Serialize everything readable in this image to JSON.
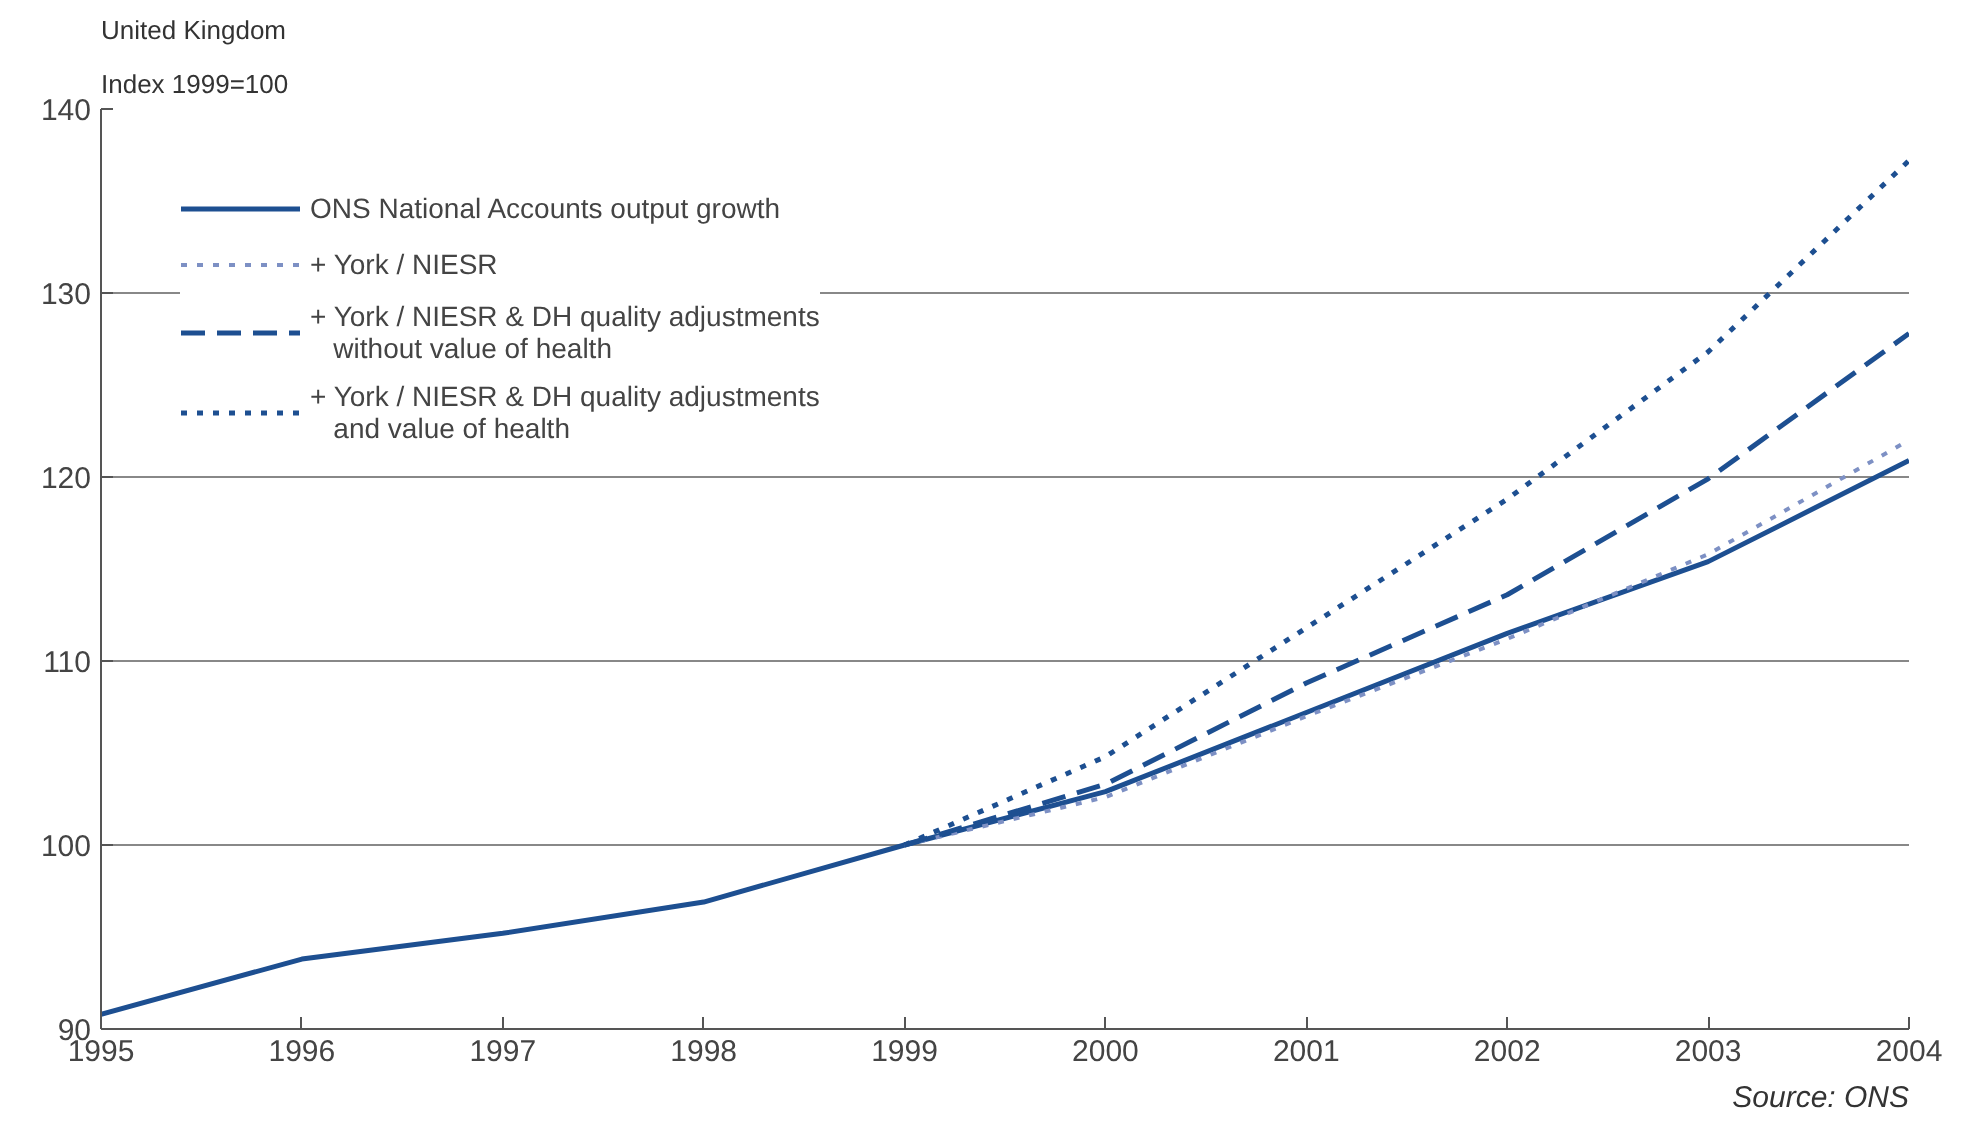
{
  "chart_data": {
    "type": "line",
    "title": "United Kingdom",
    "ylabel": "Index 1999=100",
    "x": [
      1995,
      1996,
      1997,
      1998,
      1999,
      2000,
      2001,
      2002,
      2003,
      2004
    ],
    "series": [
      {
        "name": "ONS National Accounts output growth",
        "color": "#1d4f91",
        "line_style": "solid",
        "values": [
          90.8,
          93.8,
          95.2,
          96.9,
          100,
          102.9,
          107.2,
          111.5,
          115.4,
          120.9
        ]
      },
      {
        "name": "+ York / NIESR",
        "color": "#7d90c4",
        "line_style": "dotted",
        "values": [
          null,
          null,
          null,
          null,
          100,
          102.6,
          107.0,
          111.2,
          115.8,
          122.0
        ]
      },
      {
        "name": "+ York / NIESR & DH quality adjustments\n   without value of health",
        "color": "#1d4f91",
        "line_style": "dashed",
        "values": [
          null,
          null,
          null,
          null,
          100,
          103.3,
          108.8,
          113.6,
          119.9,
          127.8
        ]
      },
      {
        "name": "+ York / NIESR & DH quality adjustments\n   and value of health",
        "color": "#1d4f91",
        "line_style": "dotted",
        "values": [
          null,
          null,
          null,
          null,
          100,
          104.8,
          111.8,
          118.8,
          126.8,
          137.2
        ]
      }
    ],
    "xlim": [
      1995,
      2004
    ],
    "xticks": [
      1995,
      1996,
      1997,
      1998,
      1999,
      2000,
      2001,
      2002,
      2003,
      2004
    ],
    "ylim": [
      90,
      140
    ],
    "yticks": [
      90,
      100,
      110,
      120,
      130,
      140
    ],
    "grid": "y",
    "legend": "top left",
    "marker": "none",
    "annotations": [
      "Source: ONS"
    ]
  }
}
